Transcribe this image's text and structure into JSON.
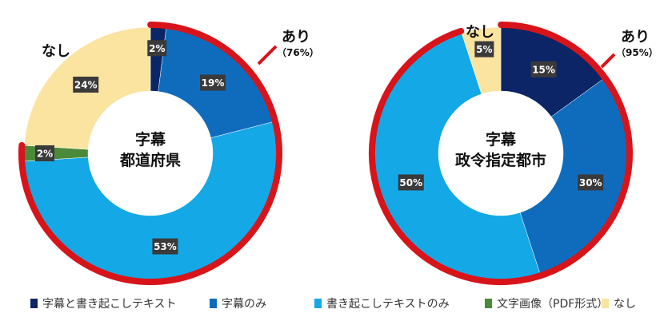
{
  "chart_data": [
    {
      "type": "pie",
      "center_title": [
        "字幕",
        "都道府県"
      ],
      "slices": [
        {
          "category": "字幕と書き起こしテキスト",
          "value": 2,
          "label": "2%"
        },
        {
          "category": "字幕のみ",
          "value": 19,
          "label": "19%"
        },
        {
          "category": "書き起こしテキストのみ",
          "value": 53,
          "label": "53%"
        },
        {
          "category": "文字画像（PDF形式）",
          "value": 2,
          "label": "2%"
        },
        {
          "category": "なし",
          "value": 24,
          "label": "24%"
        }
      ],
      "callouts": {
        "ari": {
          "text": "あり",
          "sub": "（76%）"
        },
        "nashi": {
          "text": "なし"
        }
      }
    },
    {
      "type": "pie",
      "center_title": [
        "字幕",
        "政令指定都市"
      ],
      "slices": [
        {
          "category": "字幕と書き起こしテキスト",
          "value": 15,
          "label": "15%"
        },
        {
          "category": "字幕のみ",
          "value": 30,
          "label": "30%"
        },
        {
          "category": "書き起こしテキストのみ",
          "value": 50,
          "label": "50%"
        },
        {
          "category": "なし",
          "value": 5,
          "label": "5%"
        }
      ],
      "callouts": {
        "ari": {
          "text": "あり",
          "sub": "（95%）"
        },
        "nashi": {
          "text": "なし"
        }
      }
    }
  ],
  "legend": [
    {
      "name": "字幕と書き起こしテキスト",
      "color": "#0b2566"
    },
    {
      "name": "字幕のみ",
      "color": "#0f6cbd"
    },
    {
      "name": "書き起こしテキストのみ",
      "color": "#14a8e6"
    },
    {
      "name": "文字画像（PDF形式）",
      "color": "#4a8a3a"
    },
    {
      "name": "なし",
      "color": "#fbe3a0"
    }
  ],
  "highlight_color": "#d8141b"
}
